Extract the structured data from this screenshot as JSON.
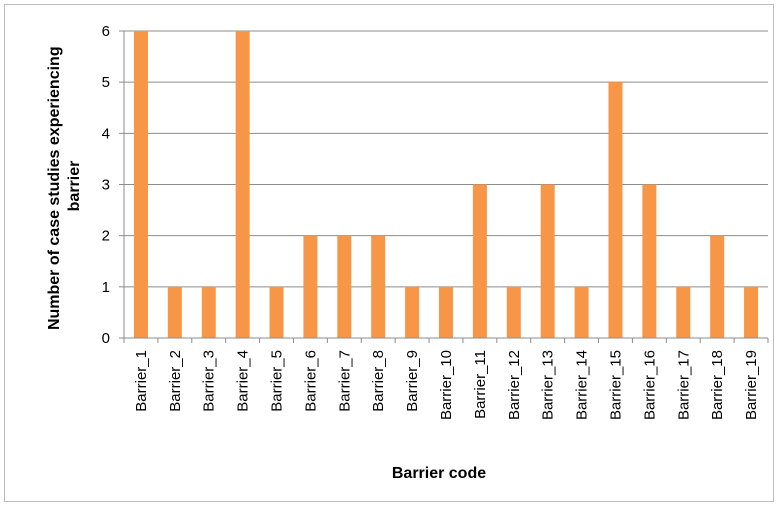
{
  "chart_data": {
    "type": "bar",
    "title": "",
    "xlabel": "Barrier code",
    "ylabel": "Number of case studies experiencing barrier",
    "ylabel_lines": [
      "Number of case studies experiencing",
      "barrier"
    ],
    "categories": [
      "Barrier_1",
      "Barrier_2",
      "Barrier_3",
      "Barrier_4",
      "Barrier_5",
      "Barrier_6",
      "Barrier_7",
      "Barrier_8",
      "Barrier_9",
      "Barrier_10",
      "Barrier_11",
      "Barrier_12",
      "Barrier_13",
      "Barrier_14",
      "Barrier_15",
      "Barrier_16",
      "Barrier_17",
      "Barrier_18",
      "Barrier_19"
    ],
    "values": [
      6,
      1,
      1,
      6,
      1,
      2,
      2,
      2,
      1,
      1,
      3,
      1,
      3,
      1,
      5,
      3,
      1,
      2,
      1
    ],
    "ylim": [
      0,
      6
    ],
    "yticks": [
      0,
      1,
      2,
      3,
      4,
      5,
      6
    ],
    "grid": true,
    "legend": "none",
    "bar_color": "#F79646"
  }
}
